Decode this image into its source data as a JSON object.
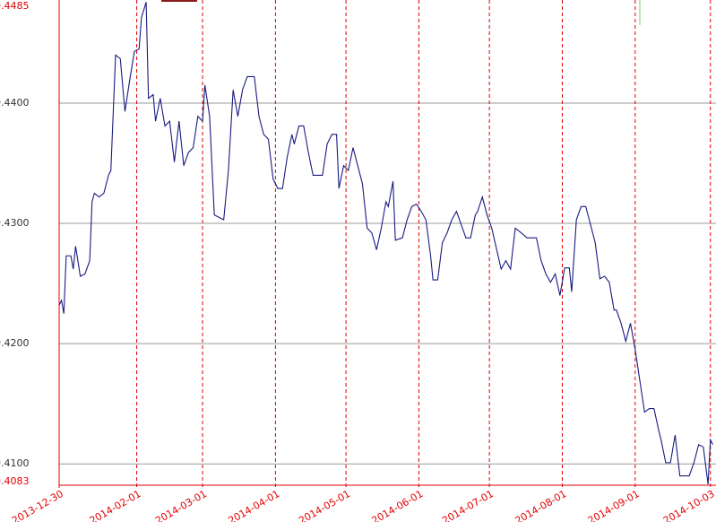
{
  "chart_data": {
    "type": "line",
    "xlim": [
      "2013-12-30",
      "2014-10-05"
    ],
    "xticks": [
      "2013-12-30",
      "2014-02-01",
      "2014-03-01",
      "2014-04-01",
      "2014-05-01",
      "2014-06-01",
      "2014-07-01",
      "2014-08-01",
      "2014-09-01",
      "2014-10-03"
    ],
    "ylim": [
      0.4083,
      0.4485
    ],
    "yticks": [
      {
        "value": 0.4083,
        "label": "0.4083"
      },
      {
        "value": 0.41,
        "label": "0.4100"
      },
      {
        "value": 0.42,
        "label": "0.4200"
      },
      {
        "value": 0.43,
        "label": "0.4300"
      },
      {
        "value": 0.44,
        "label": "0.4400"
      },
      {
        "value": 0.4485,
        "label": "0.4485"
      }
    ],
    "grid": true,
    "x": [
      "2013-12-30",
      "2013-12-31",
      "2014-01-01",
      "2014-01-02",
      "2014-01-04",
      "2014-01-05",
      "2014-01-06",
      "2014-01-08",
      "2014-01-10",
      "2014-01-12",
      "2014-01-13",
      "2014-01-14",
      "2014-01-16",
      "2014-01-18",
      "2014-01-20",
      "2014-01-21",
      "2014-01-23",
      "2014-01-25",
      "2014-01-27",
      "2014-01-29",
      "2014-01-31",
      "2014-02-02",
      "2014-02-03",
      "2014-02-05",
      "2014-02-06",
      "2014-02-08",
      "2014-02-09",
      "2014-02-11",
      "2014-02-13",
      "2014-02-15",
      "2014-02-17",
      "2014-02-19",
      "2014-02-21",
      "2014-02-23",
      "2014-02-25",
      "2014-02-27",
      "2014-03-01",
      "2014-03-02",
      "2014-03-04",
      "2014-03-06",
      "2014-03-10",
      "2014-03-12",
      "2014-03-14",
      "2014-03-16",
      "2014-03-18",
      "2014-03-20",
      "2014-03-23",
      "2014-03-25",
      "2014-03-27",
      "2014-03-29",
      "2014-03-31",
      "2014-04-02",
      "2014-04-04",
      "2014-04-06",
      "2014-04-08",
      "2014-04-09",
      "2014-04-11",
      "2014-04-13",
      "2014-04-15",
      "2014-04-17",
      "2014-04-21",
      "2014-04-23",
      "2014-04-25",
      "2014-04-27",
      "2014-04-28",
      "2014-04-30",
      "2014-05-02",
      "2014-05-04",
      "2014-05-06",
      "2014-05-08",
      "2014-05-10",
      "2014-05-12",
      "2014-05-14",
      "2014-05-16",
      "2014-05-18",
      "2014-05-19",
      "2014-05-21",
      "2014-05-22",
      "2014-05-25",
      "2014-05-27",
      "2014-05-29",
      "2014-05-31",
      "2014-06-02",
      "2014-06-04",
      "2014-06-06",
      "2014-06-07",
      "2014-06-09",
      "2014-06-11",
      "2014-06-13",
      "2014-06-15",
      "2014-06-17",
      "2014-06-19",
      "2014-06-21",
      "2014-06-23",
      "2014-06-25",
      "2014-06-26",
      "2014-06-28",
      "2014-06-30",
      "2014-07-02",
      "2014-07-06",
      "2014-07-08",
      "2014-07-10",
      "2014-07-12",
      "2014-07-14",
      "2014-07-17",
      "2014-07-21",
      "2014-07-23",
      "2014-07-25",
      "2014-07-27",
      "2014-07-29",
      "2014-07-31",
      "2014-08-02",
      "2014-08-04",
      "2014-08-05",
      "2014-08-07",
      "2014-08-09",
      "2014-08-11",
      "2014-08-13",
      "2014-08-15",
      "2014-08-17",
      "2014-08-19",
      "2014-08-21",
      "2014-08-23",
      "2014-08-24",
      "2014-08-26",
      "2014-08-28",
      "2014-08-30",
      "2014-09-01",
      "2014-09-03",
      "2014-09-05",
      "2014-09-07",
      "2014-09-09",
      "2014-09-11",
      "2014-09-12",
      "2014-09-14",
      "2014-09-16",
      "2014-09-18",
      "2014-09-20",
      "2014-09-24",
      "2014-09-26",
      "2014-09-28",
      "2014-09-30",
      "2014-10-02",
      "2014-10-03",
      "2014-10-04"
    ],
    "series": [
      {
        "color": "#1a1a80",
        "values": [
          0.4232,
          0.4236,
          0.4225,
          0.4273,
          0.4273,
          0.4262,
          0.4281,
          0.4256,
          0.4258,
          0.4269,
          0.4318,
          0.4325,
          0.4322,
          0.4325,
          0.434,
          0.4344,
          0.444,
          0.4437,
          0.4393,
          0.4419,
          0.4443,
          0.4445,
          0.4471,
          0.4484,
          0.4404,
          0.4407,
          0.4385,
          0.4404,
          0.4381,
          0.4385,
          0.4351,
          0.4385,
          0.4348,
          0.4359,
          0.4363,
          0.4389,
          0.4385,
          0.4415,
          0.4389,
          0.4307,
          0.4303,
          0.4344,
          0.4411,
          0.4389,
          0.4411,
          0.4422,
          0.4422,
          0.4389,
          0.4374,
          0.437,
          0.4337,
          0.4329,
          0.4329,
          0.4355,
          0.4374,
          0.4366,
          0.4381,
          0.4381,
          0.4359,
          0.434,
          0.434,
          0.4366,
          0.4374,
          0.4374,
          0.4329,
          0.4348,
          0.4344,
          0.4363,
          0.4348,
          0.4333,
          0.4296,
          0.4292,
          0.4278,
          0.4296,
          0.4318,
          0.4314,
          0.4335,
          0.4286,
          0.4288,
          0.4303,
          0.4314,
          0.4316,
          0.431,
          0.4303,
          0.4273,
          0.4253,
          0.4253,
          0.4284,
          0.4292,
          0.4303,
          0.431,
          0.4299,
          0.4288,
          0.4288,
          0.4307,
          0.431,
          0.4322,
          0.4307,
          0.4296,
          0.4262,
          0.4269,
          0.4262,
          0.4296,
          0.4293,
          0.4288,
          0.4288,
          0.4269,
          0.4258,
          0.4251,
          0.4258,
          0.424,
          0.4263,
          0.4263,
          0.4243,
          0.4303,
          0.4314,
          0.4314,
          0.4299,
          0.4284,
          0.4254,
          0.4256,
          0.4251,
          0.4228,
          0.4228,
          0.4217,
          0.4202,
          0.4217,
          0.4195,
          0.4169,
          0.4143,
          0.4146,
          0.4146,
          0.4128,
          0.412,
          0.4101,
          0.4101,
          0.4124,
          0.409,
          0.409,
          0.4101,
          0.4116,
          0.4114,
          0.4083,
          0.412,
          0.4116
        ]
      }
    ]
  }
}
